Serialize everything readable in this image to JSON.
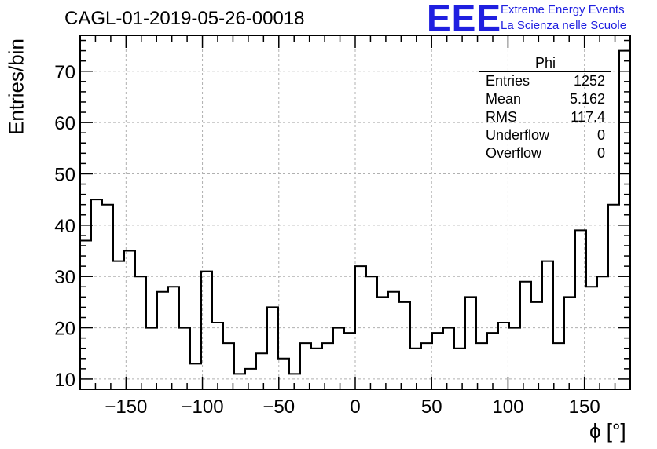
{
  "header": {
    "title": "CAGL-01-2019-05-26-00018",
    "logo": "EEE",
    "logo_line1": "Extreme Energy Events",
    "logo_line2": "La Scienza nelle Scuole"
  },
  "stats": {
    "name": "Phi",
    "rows": [
      {
        "label": "Entries",
        "value": "1252"
      },
      {
        "label": "Mean",
        "value": "5.162"
      },
      {
        "label": "RMS",
        "value": "117.4"
      },
      {
        "label": "Underflow",
        "value": "0"
      },
      {
        "label": "Overflow",
        "value": "0"
      }
    ]
  },
  "colors": {
    "accent": "#1f1fe0",
    "line": "#000000",
    "grid": "#b0b0b0"
  },
  "chart_data": {
    "type": "bar",
    "title": "CAGL-01-2019-05-26-00018",
    "xlabel": "ϕ [°]",
    "ylabel": "Entries/bin",
    "xlim": [
      -180,
      180
    ],
    "ylim": [
      8,
      77
    ],
    "grid": true,
    "bin_width": 7.2,
    "x_ticks": [
      -150,
      -100,
      -50,
      0,
      50,
      100,
      150
    ],
    "x_tick_labels": [
      "−150",
      "−100",
      "−50",
      "0",
      "50",
      "100",
      "150"
    ],
    "y_ticks": [
      10,
      20,
      30,
      40,
      50,
      60,
      70
    ],
    "y_tick_labels": [
      "10",
      "20",
      "30",
      "40",
      "50",
      "60",
      "70"
    ],
    "values": [
      37,
      45,
      44,
      33,
      35,
      30,
      20,
      27,
      28,
      20,
      13,
      31,
      21,
      17,
      11,
      12,
      15,
      24,
      14,
      11,
      17,
      16,
      17,
      20,
      19,
      32,
      30,
      26,
      27,
      25,
      16,
      17,
      19,
      20,
      16,
      26,
      17,
      19,
      21,
      20,
      29,
      25,
      33,
      17,
      26,
      39,
      28,
      30,
      44,
      74
    ]
  }
}
